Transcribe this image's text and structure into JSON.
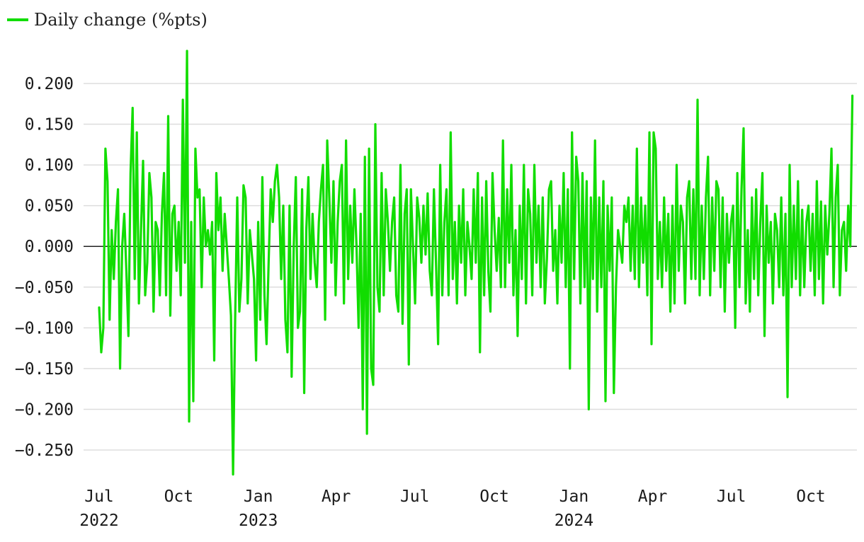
{
  "legend": {
    "label": "Daily change (%pts)",
    "color": "#11dd00"
  },
  "colors": {
    "line": "#11dd00",
    "grid": "#dddddd",
    "zero_line": "#222222",
    "text": "#1a1a1a"
  },
  "chart_data": {
    "type": "line",
    "title": "",
    "xlabel": "",
    "ylabel": "",
    "xlim": [
      "2022-06-30",
      "2024-11-20"
    ],
    "ylim": [
      -0.285,
      0.245
    ],
    "grid": true,
    "legend_position": "top-left",
    "y_ticks": [
      0.2,
      0.15,
      0.1,
      0.05,
      0.0,
      -0.05,
      -0.1,
      -0.15,
      -0.2,
      -0.25
    ],
    "y_tick_labels": [
      "0.200",
      "0.150",
      "0.100",
      "0.050",
      "0.000",
      "−0.050",
      "−0.100",
      "−0.150",
      "−0.200",
      "−0.250"
    ],
    "x_ticks": [
      {
        "date": "2022-07-01",
        "label": "Jul",
        "year": "2022"
      },
      {
        "date": "2022-10-01",
        "label": "Oct",
        "year": ""
      },
      {
        "date": "2023-01-01",
        "label": "Jan",
        "year": "2023"
      },
      {
        "date": "2023-04-01",
        "label": "Apr",
        "year": ""
      },
      {
        "date": "2023-07-01",
        "label": "Jul",
        "year": ""
      },
      {
        "date": "2023-10-01",
        "label": "Oct",
        "year": ""
      },
      {
        "date": "2024-01-01",
        "label": "Jan",
        "year": "2024"
      },
      {
        "date": "2024-04-01",
        "label": "Apr",
        "year": ""
      },
      {
        "date": "2024-07-01",
        "label": "Jul",
        "year": ""
      },
      {
        "date": "2024-10-01",
        "label": "Oct",
        "year": ""
      }
    ],
    "series": [
      {
        "name": "Daily change (%pts)",
        "x_start": "2022-07-01",
        "x_end": "2024-11-18",
        "values": [
          -0.075,
          -0.13,
          -0.1,
          0.12,
          0.08,
          -0.09,
          0.02,
          -0.04,
          0.03,
          0.07,
          -0.15,
          0.0,
          0.04,
          -0.03,
          -0.11,
          0.09,
          0.17,
          -0.04,
          0.14,
          -0.07,
          0.02,
          0.105,
          -0.06,
          -0.02,
          0.09,
          0.06,
          -0.08,
          0.03,
          0.02,
          -0.06,
          0.04,
          0.09,
          -0.06,
          0.16,
          -0.085,
          0.04,
          0.05,
          -0.03,
          0.03,
          -0.06,
          0.18,
          -0.02,
          0.24,
          -0.215,
          0.03,
          -0.19,
          0.12,
          0.06,
          0.07,
          -0.05,
          0.06,
          0.0,
          0.02,
          -0.01,
          0.03,
          -0.14,
          0.09,
          0.02,
          0.06,
          -0.03,
          0.04,
          0.0,
          -0.04,
          -0.085,
          -0.28,
          -0.09,
          0.06,
          -0.08,
          -0.04,
          0.075,
          0.06,
          -0.07,
          0.02,
          -0.01,
          -0.04,
          -0.14,
          0.03,
          -0.09,
          0.085,
          -0.06,
          -0.12,
          -0.02,
          0.07,
          0.03,
          0.08,
          0.1,
          0.06,
          -0.04,
          0.05,
          -0.09,
          -0.13,
          0.05,
          -0.16,
          0.0,
          0.085,
          -0.1,
          -0.08,
          0.07,
          -0.18,
          0.02,
          0.085,
          -0.04,
          0.04,
          -0.02,
          -0.05,
          0.03,
          0.07,
          0.1,
          -0.09,
          0.13,
          0.06,
          -0.02,
          0.08,
          -0.06,
          0.03,
          0.08,
          0.1,
          -0.07,
          0.13,
          -0.04,
          0.05,
          -0.02,
          0.07,
          0.0,
          -0.1,
          0.04,
          -0.2,
          0.11,
          -0.23,
          0.12,
          -0.15,
          -0.17,
          0.15,
          -0.05,
          -0.08,
          0.09,
          -0.06,
          0.07,
          0.03,
          -0.03,
          0.03,
          0.06,
          -0.06,
          -0.08,
          0.1,
          -0.095,
          0.04,
          0.07,
          -0.145,
          0.07,
          0.0,
          -0.07,
          0.06,
          0.035,
          -0.02,
          0.05,
          -0.01,
          0.065,
          -0.03,
          -0.06,
          0.07,
          -0.02,
          -0.12,
          0.1,
          -0.06,
          0.03,
          0.07,
          -0.06,
          0.14,
          -0.04,
          0.03,
          -0.07,
          0.05,
          -0.02,
          0.07,
          -0.06,
          0.03,
          0.0,
          -0.04,
          0.07,
          -0.02,
          0.09,
          -0.13,
          0.06,
          -0.06,
          0.08,
          -0.03,
          -0.08,
          0.09,
          0.02,
          -0.03,
          0.035,
          -0.05,
          0.13,
          -0.05,
          0.07,
          -0.02,
          0.1,
          -0.06,
          0.02,
          -0.11,
          0.05,
          -0.04,
          0.1,
          -0.07,
          0.07,
          0.04,
          -0.06,
          0.1,
          -0.02,
          0.05,
          -0.05,
          0.06,
          -0.07,
          -0.015,
          0.07,
          0.08,
          -0.03,
          0.02,
          -0.07,
          0.05,
          -0.02,
          0.09,
          -0.05,
          0.07,
          -0.15,
          0.14,
          -0.04,
          0.11,
          0.08,
          -0.07,
          0.09,
          -0.05,
          0.08,
          -0.2,
          0.06,
          -0.04,
          0.13,
          -0.08,
          0.06,
          -0.05,
          0.08,
          -0.19,
          0.05,
          -0.03,
          0.06,
          -0.18,
          -0.05,
          0.02,
          0.0,
          -0.02,
          0.05,
          0.03,
          0.06,
          -0.03,
          0.05,
          -0.04,
          0.12,
          -0.05,
          0.06,
          -0.02,
          0.05,
          -0.06,
          0.14,
          -0.12,
          0.14,
          0.12,
          -0.04,
          0.03,
          -0.05,
          0.06,
          -0.03,
          0.04,
          -0.08,
          0.05,
          -0.07,
          0.1,
          -0.03,
          0.05,
          0.03,
          -0.07,
          0.06,
          0.08,
          -0.04,
          0.07,
          -0.04,
          0.18,
          -0.06,
          0.05,
          -0.04,
          0.06,
          0.11,
          -0.06,
          0.06,
          -0.03,
          0.08,
          0.07,
          -0.05,
          0.06,
          -0.08,
          0.04,
          -0.02,
          0.03,
          0.05,
          -0.1,
          0.09,
          -0.05,
          0.07,
          0.145,
          -0.07,
          0.02,
          -0.08,
          0.06,
          -0.04,
          0.07,
          -0.06,
          0.03,
          0.09,
          -0.11,
          0.05,
          -0.02,
          0.03,
          -0.07,
          0.04,
          0.02,
          -0.05,
          0.06,
          -0.06,
          0.04,
          -0.185,
          0.1,
          -0.05,
          0.05,
          -0.04,
          0.08,
          -0.06,
          0.045,
          -0.05,
          0.03,
          0.05,
          -0.03,
          0.04,
          -0.06,
          0.08,
          -0.04,
          0.055,
          -0.07,
          0.05,
          -0.01,
          0.04,
          0.12,
          -0.05,
          0.06,
          0.1,
          -0.06,
          0.02,
          0.03,
          -0.03,
          0.05,
          0.0,
          0.185
        ]
      }
    ]
  }
}
